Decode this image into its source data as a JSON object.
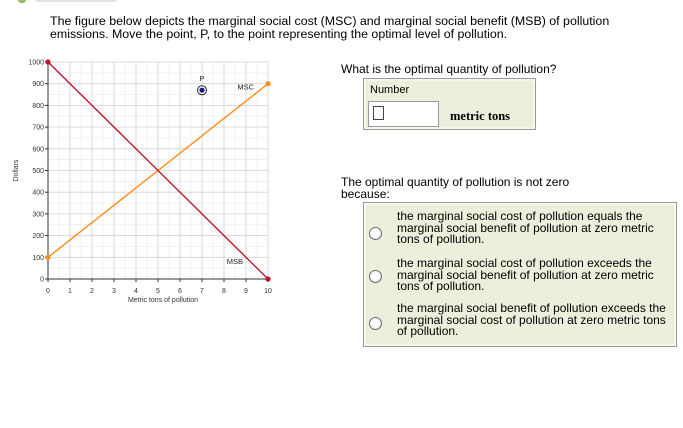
{
  "prompt": "The figure below depicts the marginal social cost (MSC) and marginal social benefit (MSB) of pollution emissions.  Move the point, P, to the point representing the optimal level of pollution.",
  "chart_data": {
    "type": "line",
    "xlabel": "Metric tons of pollution",
    "ylabel": "Dollars",
    "xlim": [
      0,
      10
    ],
    "ylim": [
      0,
      1000
    ],
    "x_ticks": [
      0,
      1,
      2,
      3,
      4,
      5,
      6,
      7,
      8,
      9,
      10
    ],
    "y_ticks": [
      0,
      100,
      200,
      300,
      400,
      500,
      600,
      700,
      800,
      900,
      1000
    ],
    "grid": true,
    "series": [
      {
        "name": "MSC",
        "color": "#ff8c1a",
        "x": [
          0,
          10
        ],
        "y": [
          100,
          900
        ]
      },
      {
        "name": "MSB",
        "color": "#c0142e",
        "x": [
          0,
          10
        ],
        "y": [
          1000,
          0
        ]
      }
    ],
    "point": {
      "label": "P",
      "x": 7,
      "y": 870
    }
  },
  "question1": "What is the optimal quantity of pollution?",
  "number_panel": {
    "label": "Number",
    "value": "",
    "unit": "metric  tons"
  },
  "question2": "The optimal quantity of pollution is not zero because:",
  "choices": [
    {
      "text": "the marginal social cost of pollution equals the marginal social benefit of pollution at zero metric tons of pollution."
    },
    {
      "text": "the marginal social cost of pollution exceeds the marginal social benefit of pollution at zero metric tons of pollution."
    },
    {
      "text": "the marginal social benefit of pollution exceeds the marginal social cost of pollution at zero metric tons of pollution."
    }
  ]
}
